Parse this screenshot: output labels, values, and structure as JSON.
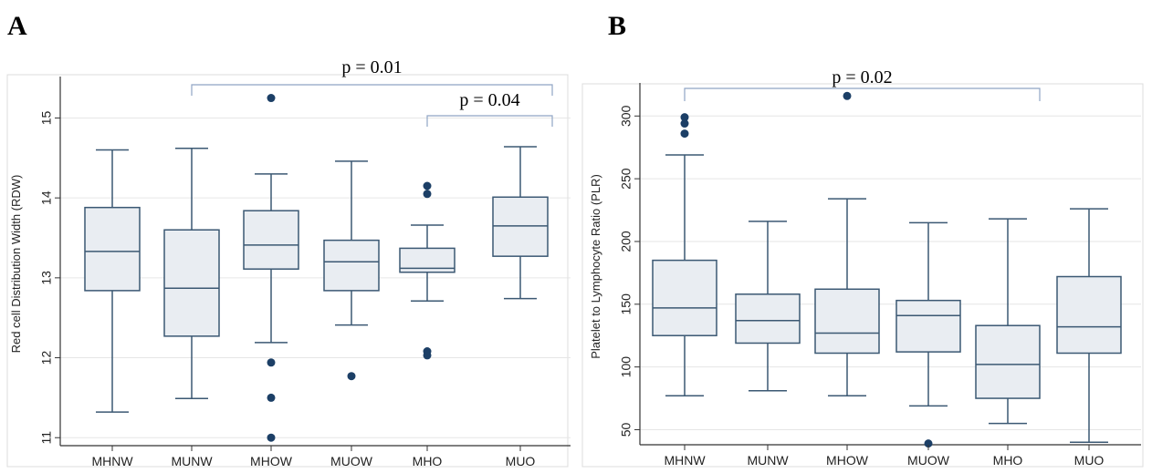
{
  "chart_data": [
    {
      "panel": "A",
      "type": "box",
      "ylabel": "Red cell Distribution Width (RDW)",
      "ylim": [
        10.9,
        15.45
      ],
      "yticks": [
        11,
        12,
        13,
        14,
        15
      ],
      "categories": [
        "MHNW",
        "MUNW",
        "MHOW",
        "MUOW",
        "MHO",
        "MUO"
      ],
      "boxes": [
        {
          "min": 11.32,
          "q1": 12.84,
          "median": 13.33,
          "q3": 13.88,
          "max": 14.6,
          "outliers": []
        },
        {
          "min": 11.49,
          "q1": 12.27,
          "median": 12.87,
          "q3": 13.6,
          "max": 14.62,
          "outliers": []
        },
        {
          "min": 12.19,
          "q1": 13.11,
          "median": 13.41,
          "q3": 13.84,
          "max": 14.3,
          "outliers": [
            15.25,
            11.94,
            11.5,
            11.0
          ]
        },
        {
          "min": 12.41,
          "q1": 12.84,
          "median": 13.2,
          "q3": 13.47,
          "max": 14.46,
          "outliers": [
            11.77
          ]
        },
        {
          "min": 12.71,
          "q1": 13.07,
          "median": 13.12,
          "q3": 13.37,
          "max": 13.66,
          "outliers": [
            14.15,
            14.05,
            12.08,
            12.03
          ]
        },
        {
          "min": 12.74,
          "q1": 13.27,
          "median": 13.65,
          "q3": 14.01,
          "max": 14.64,
          "outliers": []
        }
      ],
      "annotations": [
        {
          "from": "MUNW",
          "to": "MUO",
          "label": "p = 0.01"
        },
        {
          "from": "MHO",
          "to": "MUO",
          "label": "p = 0.04"
        }
      ]
    },
    {
      "panel": "B",
      "type": "box",
      "ylabel": "Platelet to Lymphocyte Ratio (PLR)",
      "ylim": [
        38,
        322
      ],
      "yticks": [
        50,
        100,
        150,
        200,
        250,
        300
      ],
      "categories": [
        "MHNW",
        "MUNW",
        "MHOW",
        "MUOW",
        "MHO",
        "MUO"
      ],
      "boxes": [
        {
          "min": 77,
          "q1": 125,
          "median": 147,
          "q3": 185,
          "max": 269,
          "outliers": [
            299,
            294,
            286
          ]
        },
        {
          "min": 81,
          "q1": 119,
          "median": 137,
          "q3": 158,
          "max": 216,
          "outliers": []
        },
        {
          "min": 77,
          "q1": 111,
          "median": 127,
          "q3": 162,
          "max": 234,
          "outliers": [
            316
          ]
        },
        {
          "min": 69,
          "q1": 112,
          "median": 141,
          "q3": 153,
          "max": 215,
          "outliers": [
            39
          ]
        },
        {
          "min": 55,
          "q1": 75,
          "median": 102,
          "q3": 133,
          "max": 218,
          "outliers": []
        },
        {
          "min": 40,
          "q1": 111,
          "median": 132,
          "q3": 172,
          "max": 226,
          "outliers": []
        }
      ],
      "annotations": [
        {
          "from": "MHNW",
          "to": "MHO",
          "label": "p = 0.02"
        }
      ]
    }
  ]
}
